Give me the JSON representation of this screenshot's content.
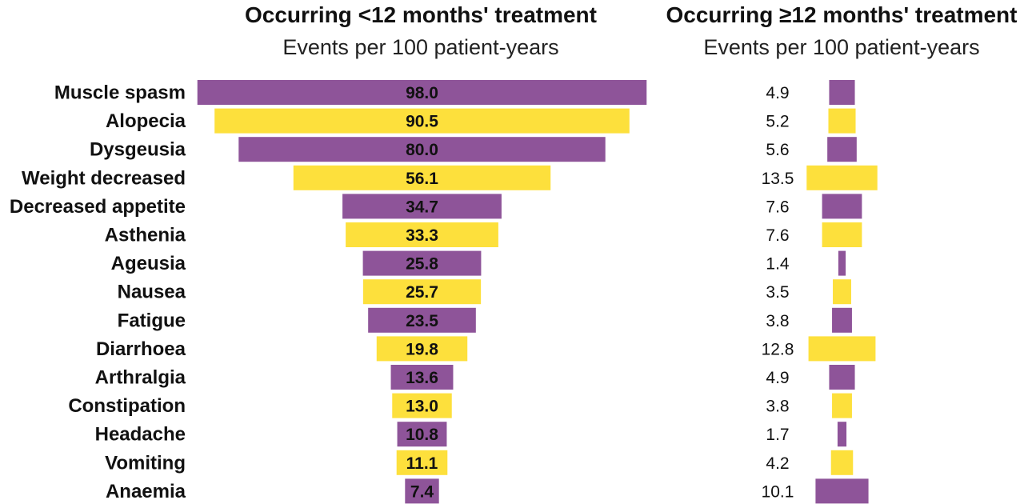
{
  "chart_data": {
    "type": "bar",
    "categories": [
      "Muscle spasm",
      "Alopecia",
      "Dysgeusia",
      "Weight decreased",
      "Decreased appetite",
      "Asthenia",
      "Ageusia",
      "Nausea",
      "Fatigue",
      "Diarrhoea",
      "Arthralgia",
      "Constipation",
      "Headache",
      "Vomiting",
      "Anaemia"
    ],
    "panels": [
      {
        "title": "Occurring <12 months' treatment",
        "subtitle": "Events per 100 patient-years",
        "values": [
          98.0,
          90.5,
          80.0,
          56.1,
          34.7,
          33.3,
          25.8,
          25.7,
          23.5,
          19.8,
          13.6,
          13.0,
          10.8,
          11.1,
          7.4
        ],
        "value_labels": [
          "98.0",
          "90.5",
          "80.0",
          "56.1",
          "34.7",
          "33.3",
          "25.8",
          "25.7",
          "23.5",
          "19.8",
          "13.6",
          "13.0",
          "10.8",
          "11.1",
          "7.4"
        ]
      },
      {
        "title": "Occurring ≥12 months' treatment",
        "subtitle": "Events per 100 patient-years",
        "values": [
          4.9,
          5.2,
          5.6,
          13.5,
          7.6,
          7.6,
          1.4,
          3.5,
          3.8,
          12.8,
          4.9,
          3.8,
          1.7,
          4.2,
          10.1
        ],
        "value_labels": [
          "4.9",
          "5.2",
          "5.6",
          "13.5",
          "7.6",
          "7.6",
          "1.4",
          "3.5",
          "3.8",
          "12.8",
          "4.9",
          "3.8",
          "1.7",
          "4.2",
          "10.1"
        ]
      }
    ],
    "orientation": "horizontal-centered",
    "colors": [
      "#8e5499",
      "#fde03c"
    ],
    "color_pattern": "alternating",
    "grid": false,
    "legend": "none"
  }
}
